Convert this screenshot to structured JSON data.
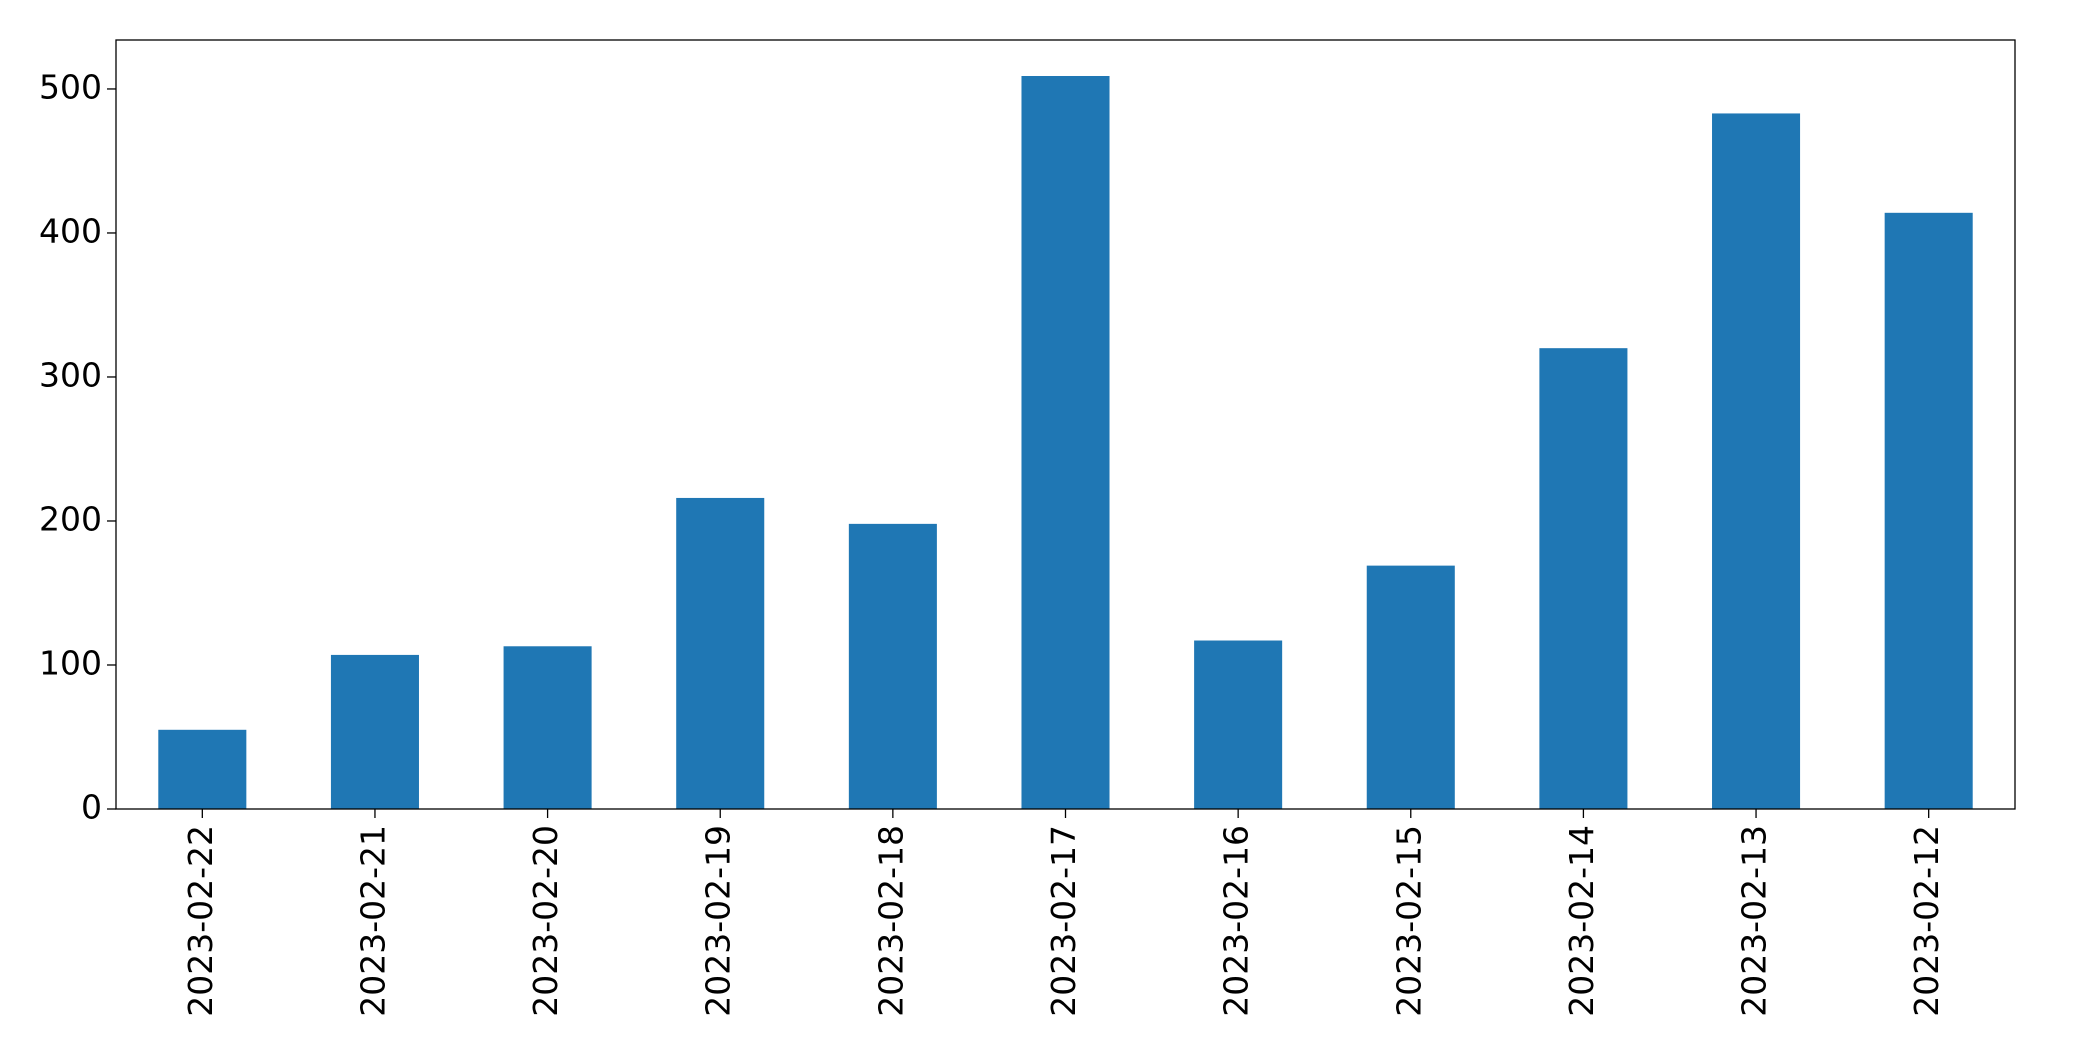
{
  "chart_data": {
    "type": "bar",
    "categories": [
      "2023-02-22",
      "2023-02-21",
      "2023-02-20",
      "2023-02-19",
      "2023-02-18",
      "2023-02-17",
      "2023-02-16",
      "2023-02-15",
      "2023-02-14",
      "2023-02-13",
      "2023-02-12"
    ],
    "values": [
      55,
      107,
      113,
      216,
      198,
      509,
      117,
      169,
      320,
      483,
      414
    ],
    "color": "#1f77b4",
    "ylim": [
      0,
      534
    ],
    "yticks": [
      0,
      100,
      200,
      300,
      400,
      500
    ],
    "grid": false
  }
}
